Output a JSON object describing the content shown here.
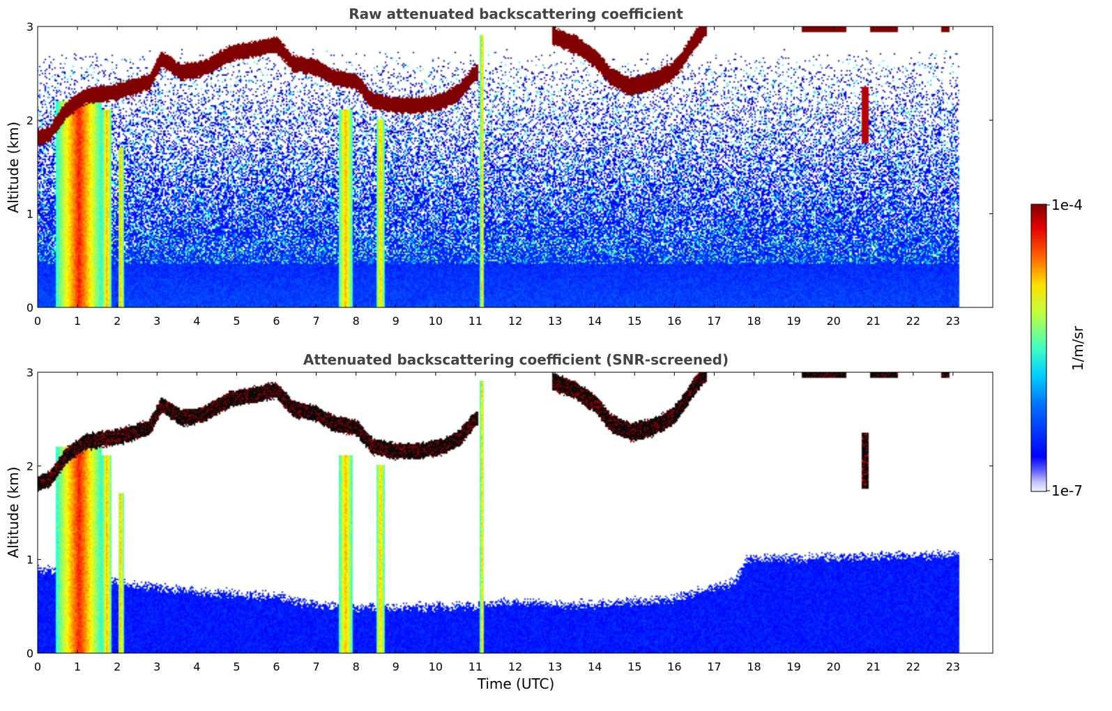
{
  "chart_data": [
    {
      "type": "heatmap",
      "title": "Raw attenuated backscattering coefficient",
      "xlabel": "",
      "ylabel": "Altitude (km)",
      "xlim": [
        0,
        24
      ],
      "ylim": [
        0,
        3
      ],
      "x_ticks": [
        "0",
        "1",
        "2",
        "3",
        "4",
        "5",
        "6",
        "7",
        "8",
        "9",
        "10",
        "11",
        "12",
        "13",
        "14",
        "15",
        "16",
        "17",
        "18",
        "19",
        "20",
        "21",
        "22",
        "23"
      ],
      "y_ticks": [
        "0",
        "1",
        "2",
        "3"
      ],
      "data_time_range": [
        0,
        23.15
      ],
      "screened": false
    },
    {
      "type": "heatmap",
      "title": "Attenuated backscattering coefficient (SNR-screened)",
      "xlabel": "Time (UTC)",
      "ylabel": "Altitude (km)",
      "xlim": [
        0,
        24
      ],
      "ylim": [
        0,
        3
      ],
      "x_ticks": [
        "0",
        "1",
        "2",
        "3",
        "4",
        "5",
        "6",
        "7",
        "8",
        "9",
        "10",
        "11",
        "12",
        "13",
        "14",
        "15",
        "16",
        "17",
        "18",
        "19",
        "20",
        "21",
        "22",
        "23"
      ],
      "y_ticks": [
        "0",
        "1",
        "2",
        "3"
      ],
      "data_time_range": [
        0,
        23.15
      ],
      "screened": true
    }
  ],
  "colorbar": {
    "label": "1/m/sr",
    "min_label": "1e-7",
    "max_label": "1e-4",
    "scale": "log",
    "colormap": "jet"
  },
  "features": {
    "cloud_layer": [
      [
        0,
        1.8
      ],
      [
        0.3,
        1.85
      ],
      [
        0.7,
        2.1
      ],
      [
        1.2,
        2.25
      ],
      [
        2,
        2.3
      ],
      [
        2.8,
        2.4
      ],
      [
        3.1,
        2.65
      ],
      [
        3.6,
        2.5
      ],
      [
        4.2,
        2.55
      ],
      [
        4.8,
        2.7
      ],
      [
        5.4,
        2.75
      ],
      [
        6,
        2.8
      ],
      [
        6.4,
        2.6
      ],
      [
        7,
        2.55
      ],
      [
        7.4,
        2.45
      ],
      [
        8,
        2.4
      ],
      [
        8.4,
        2.2
      ],
      [
        9,
        2.15
      ],
      [
        9.6,
        2.15
      ],
      [
        10.2,
        2.2
      ],
      [
        10.6,
        2.3
      ],
      [
        11,
        2.5
      ]
    ],
    "cloud_layer_2": [
      [
        12.9,
        2.9
      ],
      [
        13.5,
        2.8
      ],
      [
        14,
        2.65
      ],
      [
        14.4,
        2.45
      ],
      [
        14.9,
        2.35
      ],
      [
        15.4,
        2.4
      ],
      [
        15.9,
        2.5
      ],
      [
        16.2,
        2.65
      ],
      [
        16.5,
        2.85
      ],
      [
        16.8,
        3.0
      ]
    ],
    "top_fragments": [
      [
        19.2,
        20.3
      ],
      [
        20.9,
        21.6
      ],
      [
        22.7,
        22.9
      ]
    ],
    "aerosol_plumes": [
      [
        0.45,
        1.6,
        2.2
      ],
      [
        1.6,
        1.85,
        2.1
      ],
      [
        2.0,
        2.15,
        1.7
      ],
      [
        7.55,
        7.9,
        2.1
      ],
      [
        8.5,
        8.7,
        2.0
      ],
      [
        11.1,
        11.2,
        2.9
      ]
    ],
    "raw_base_level": 0.45,
    "screened_boundary": [
      [
        0,
        0.9
      ],
      [
        1.5,
        0.8
      ],
      [
        2.5,
        0.72
      ],
      [
        4,
        0.65
      ],
      [
        6,
        0.6
      ],
      [
        7,
        0.5
      ],
      [
        9,
        0.48
      ],
      [
        11,
        0.5
      ],
      [
        12,
        0.55
      ],
      [
        13,
        0.52
      ],
      [
        14,
        0.52
      ],
      [
        15,
        0.55
      ],
      [
        16,
        0.58
      ],
      [
        17,
        0.7
      ],
      [
        17.5,
        0.75
      ],
      [
        17.8,
        1.0
      ],
      [
        23.15,
        1.05
      ]
    ]
  }
}
